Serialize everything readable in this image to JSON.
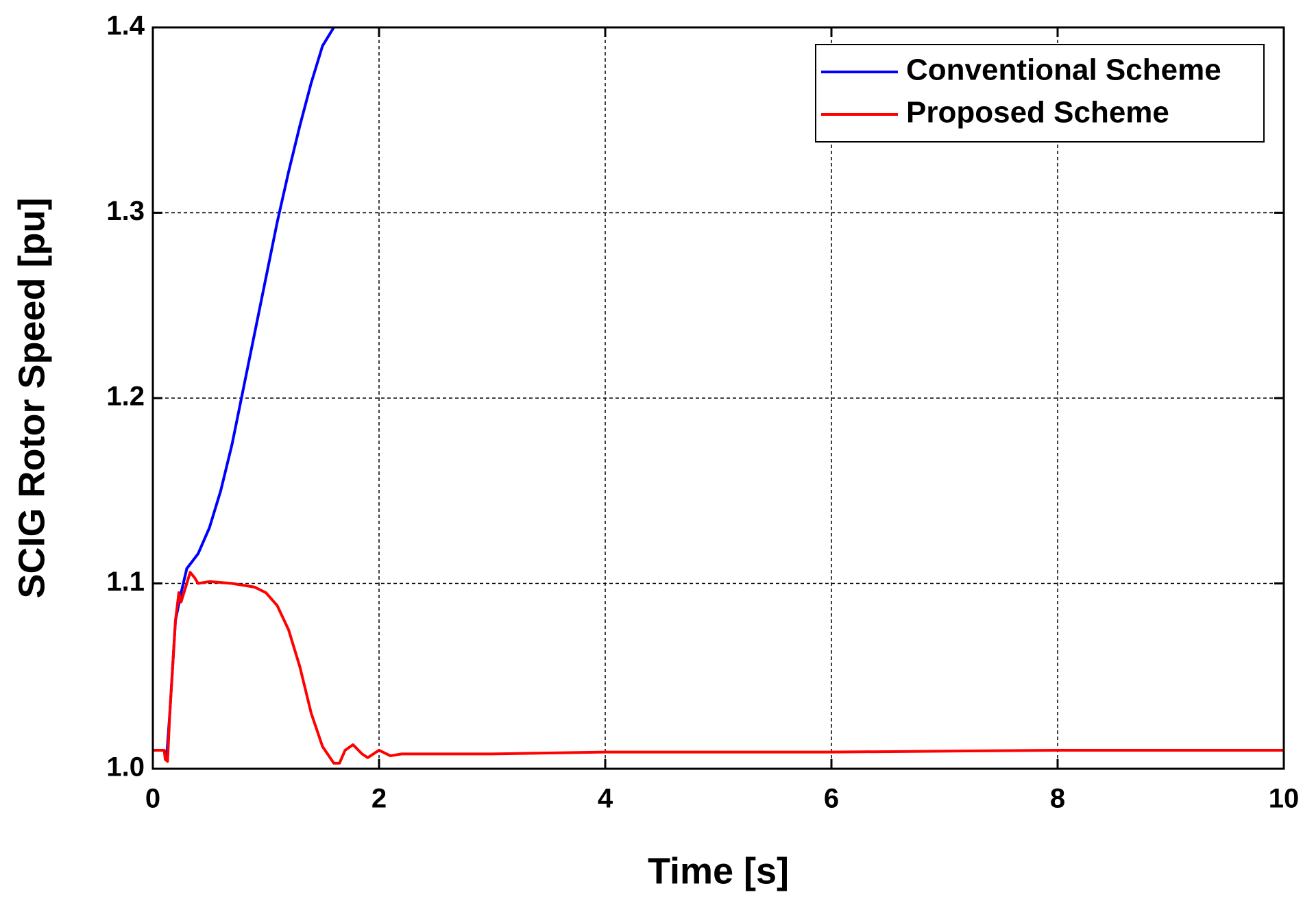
{
  "chart_data": {
    "type": "line",
    "xlabel": "Time [s]",
    "ylabel": "SCIG Rotor Speed [pu]",
    "xlim": [
      0,
      10
    ],
    "ylim": [
      1.0,
      1.4
    ],
    "xticks": [
      0,
      2,
      4,
      6,
      8,
      10
    ],
    "yticks": [
      {
        "value": 1.0,
        "label": "1.0"
      },
      1.1,
      1.2,
      1.3,
      1.4
    ],
    "grid": true,
    "legend": "upper right",
    "series": [
      {
        "name": "Conventional Scheme",
        "color": "#0000ff",
        "x": [
          0,
          0.1,
          0.12,
          0.15,
          0.2,
          0.25,
          0.3,
          0.4,
          0.5,
          0.6,
          0.7,
          0.8,
          0.9,
          1.0,
          1.1,
          1.2,
          1.3,
          1.4,
          1.5,
          1.6
        ],
        "values": [
          1.01,
          1.01,
          1.005,
          1.03,
          1.08,
          1.095,
          1.108,
          1.116,
          1.13,
          1.15,
          1.175,
          1.205,
          1.235,
          1.265,
          1.295,
          1.322,
          1.347,
          1.37,
          1.39,
          1.4
        ]
      },
      {
        "name": "Proposed Scheme",
        "color": "#ff0000",
        "x": [
          0,
          0.1,
          0.11,
          0.13,
          0.15,
          0.2,
          0.23,
          0.25,
          0.3,
          0.33,
          0.37,
          0.4,
          0.5,
          0.7,
          0.9,
          1.0,
          1.1,
          1.2,
          1.3,
          1.4,
          1.5,
          1.6,
          1.65,
          1.7,
          1.77,
          1.85,
          1.9,
          2.0,
          2.1,
          2.2,
          3,
          4,
          6,
          8,
          10
        ],
        "values": [
          1.01,
          1.01,
          1.005,
          1.004,
          1.03,
          1.08,
          1.095,
          1.09,
          1.1,
          1.106,
          1.103,
          1.1,
          1.101,
          1.1,
          1.098,
          1.095,
          1.088,
          1.075,
          1.055,
          1.03,
          1.012,
          1.003,
          1.003,
          1.01,
          1.013,
          1.008,
          1.006,
          1.01,
          1.007,
          1.008,
          1.008,
          1.009,
          1.009,
          1.01,
          1.01
        ]
      }
    ]
  }
}
